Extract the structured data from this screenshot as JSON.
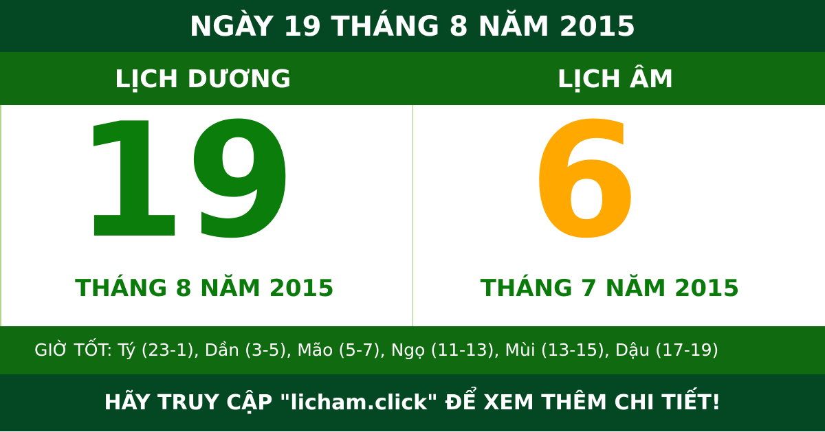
{
  "title": "NGÀY 19 THÁNG 8 NĂM 2015",
  "solar": {
    "label": "LỊCH DƯƠNG",
    "day": "19",
    "month_year": "THÁNG 8 NĂM 2015"
  },
  "lunar": {
    "label": "LỊCH ÂM",
    "day": "6",
    "month_year": "THÁNG 7 NĂM 2015"
  },
  "good_hours": "GIỜ TỐT: Tý (23-1), Dần (3-5), Mão (5-7), Ngọ (11-13), Mùi (13-15), Dậu (17-19)",
  "footer": "HÃY TRUY CẬP \"licham.click\" ĐỂ XEM THÊM CHI TIẾT!",
  "colors": {
    "dark_green": "#034822",
    "green": "#106b10",
    "solar_day": "#0a7d0a",
    "lunar_day": "#ffa800"
  }
}
